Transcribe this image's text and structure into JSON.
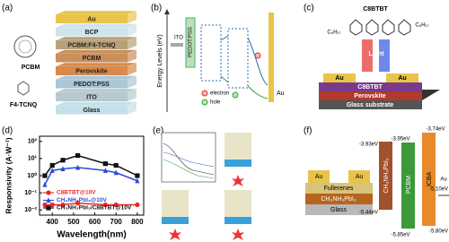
{
  "panels": {
    "a": {
      "label": "(a)",
      "layers": [
        "Au",
        "BCP",
        "PCBM:F4-TCNQ",
        "PCBM",
        "Perovskite",
        "PEDOT:PSS",
        "ITO",
        "Glass"
      ],
      "molecules": [
        "PCBM",
        "F4-TCNQ"
      ]
    },
    "b": {
      "label": "(b)",
      "axis_label": "Energy Levels (eV)",
      "texts": [
        "ITO",
        "PEDOT:PSS",
        "Au"
      ],
      "legend": [
        "electron",
        "hole"
      ]
    },
    "c": {
      "label": "(c)",
      "molecule": "C8BTBT",
      "chains": [
        "C₈H₁₇",
        "C₈H₁₇"
      ],
      "light": "Light",
      "layers": [
        "Au",
        "Au",
        "C8BTBT",
        "Perovskite",
        "Glass substrate"
      ]
    },
    "d": {
      "label": "(d)"
    },
    "e": {
      "label": "(e)"
    },
    "f": {
      "label": "(f)",
      "device": [
        "Au",
        "Au",
        "Fullerenes",
        "CH₃NH₃PbI₃",
        "Glass"
      ],
      "bars": [
        "CH₃NH₃PbI₃",
        "PCBM",
        "ICBA",
        "Au"
      ],
      "levels": [
        "-3.93eV",
        "-3.95eV",
        "-3.74eV",
        "-5.10eV",
        "-5.44eV",
        "-5.85eV",
        "-5.80eV"
      ]
    }
  },
  "chart_data": {
    "type": "line",
    "xlabel": "Wavelength(nm)",
    "ylabel": "Responsivity (A·W⁻¹)",
    "x": [
      365,
      400,
      450,
      520,
      650,
      700,
      800
    ],
    "series": [
      {
        "name": "C8BTBT@10V",
        "color": "#e8282b",
        "marker": "circle",
        "values": [
          0.02,
          0.02,
          0.02,
          0.025,
          0.02,
          0.02,
          0.02
        ]
      },
      {
        "name": "CH₃NH₃PbI₃@10V",
        "color": "#2a4bd7",
        "marker": "triangle",
        "values": [
          0.3,
          2,
          2.5,
          3,
          2,
          1.5,
          0.5
        ]
      },
      {
        "name": "CH₃NH₃PbI₃/C8BTBT@10V",
        "color": "#111111",
        "marker": "square",
        "values": [
          1,
          4,
          8,
          15,
          5,
          4,
          1
        ]
      }
    ],
    "xlim": [
      340,
      830
    ],
    "xticks": [
      400,
      500,
      600,
      700,
      800
    ],
    "ylim": [
      0.005,
      200
    ],
    "yscale": "log",
    "yticks": [
      {
        "value": 0.01,
        "label": "10⁻²"
      },
      {
        "value": 0.1,
        "label": "10⁻¹"
      },
      {
        "value": 1,
        "label": "10⁰"
      },
      {
        "value": 10,
        "label": "10¹"
      },
      {
        "value": 100,
        "label": "10²"
      }
    ],
    "legend": "lower left"
  }
}
